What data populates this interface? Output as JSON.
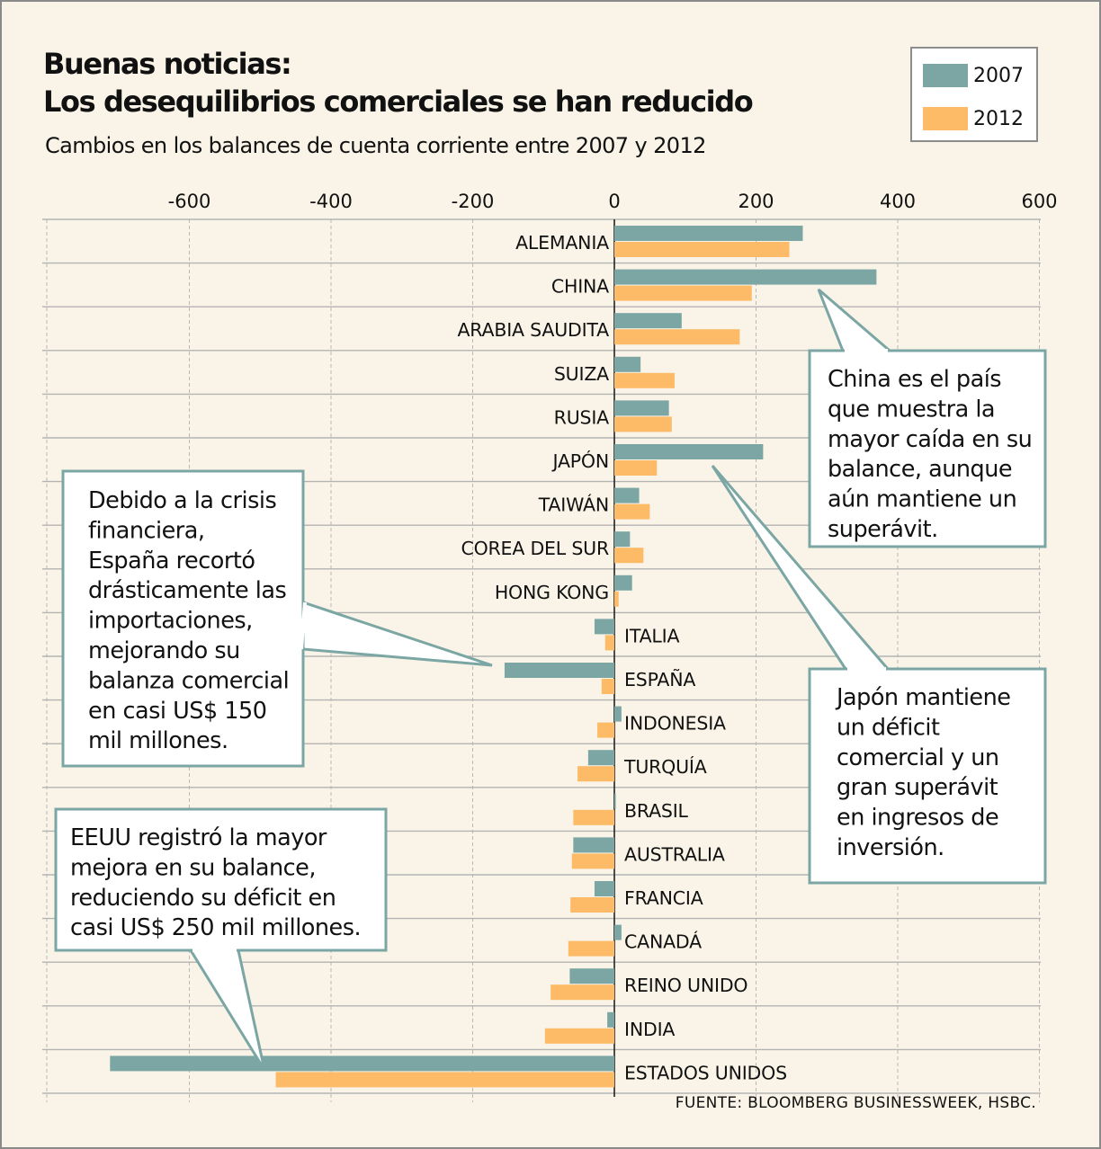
{
  "header": {
    "title_line1": "Buenas noticias:",
    "title_line2": "Los desequilibrios comerciales se han reducido",
    "subtitle": "Cambios en los balances de cuenta corriente entre 2007 y 2012"
  },
  "legend": [
    {
      "label": "2007",
      "color": "#7ba6a4"
    },
    {
      "label": "2012",
      "color": "#fdbb68"
    }
  ],
  "source": "FUENTE: BLOOMBERG BUSINESSWEEK, HSBC.",
  "annotations": [
    {
      "id": "china",
      "lines": [
        "China es el país",
        "que muestra la",
        "mayor caída en su",
        "balance, aunque",
        "aún mantiene un",
        "superávit."
      ]
    },
    {
      "id": "espana",
      "lines": [
        "Debido a la crisis",
        "financiera,",
        "España recortó",
        "drásticamente las",
        "importaciones,",
        "mejorando su",
        "balanza comercial",
        "en casi US$ 150",
        "mil millones."
      ]
    },
    {
      "id": "japon",
      "lines": [
        "Japón mantiene",
        "un déficit",
        "comercial y un",
        "gran superávit",
        "en ingresos de",
        "inversión."
      ]
    },
    {
      "id": "eeuu",
      "lines": [
        "EEUU registró la mayor",
        "mejora en su balance,",
        "reduciendo su déficit en",
        "casi US$ 250 mil millones."
      ]
    }
  ],
  "chart_data": {
    "type": "bar",
    "orientation": "horizontal",
    "xlim": [
      -800,
      600
    ],
    "x_ticks": [
      "-600",
      "-400",
      "-200",
      "0",
      "200",
      "400",
      "600"
    ],
    "x_tick_values": [
      -600,
      -400,
      -200,
      0,
      200,
      400,
      600
    ],
    "grid": true,
    "legend_position": "top-right",
    "categories": [
      "ALEMANIA",
      "CHINA",
      "ARABIA SAUDITA",
      "SUIZA",
      "RUSIA",
      "JAPÓN",
      "TAIWÁN",
      "COREA DEL SUR",
      "HONG KONG",
      "ITALIA",
      "ESPAÑA",
      "INDONESIA",
      "TURQUÍA",
      "BRASIL",
      "AUSTRALIA",
      "FRANCIA",
      "CANADÁ",
      "REINO UNIDO",
      "INDIA",
      "ESTADOS UNIDOS"
    ],
    "series": [
      {
        "name": "2007",
        "values": [
          266,
          370,
          95,
          37,
          77,
          210,
          35,
          22,
          25,
          -28,
          -155,
          10,
          -37,
          2,
          -58,
          -28,
          10,
          -63,
          -10,
          -712
        ]
      },
      {
        "name": "2012",
        "values": [
          247,
          194,
          177,
          85,
          81,
          60,
          50,
          41,
          6,
          -13,
          -18,
          -24,
          -52,
          -58,
          -60,
          -62,
          -65,
          -90,
          -98,
          -478
        ]
      }
    ]
  }
}
